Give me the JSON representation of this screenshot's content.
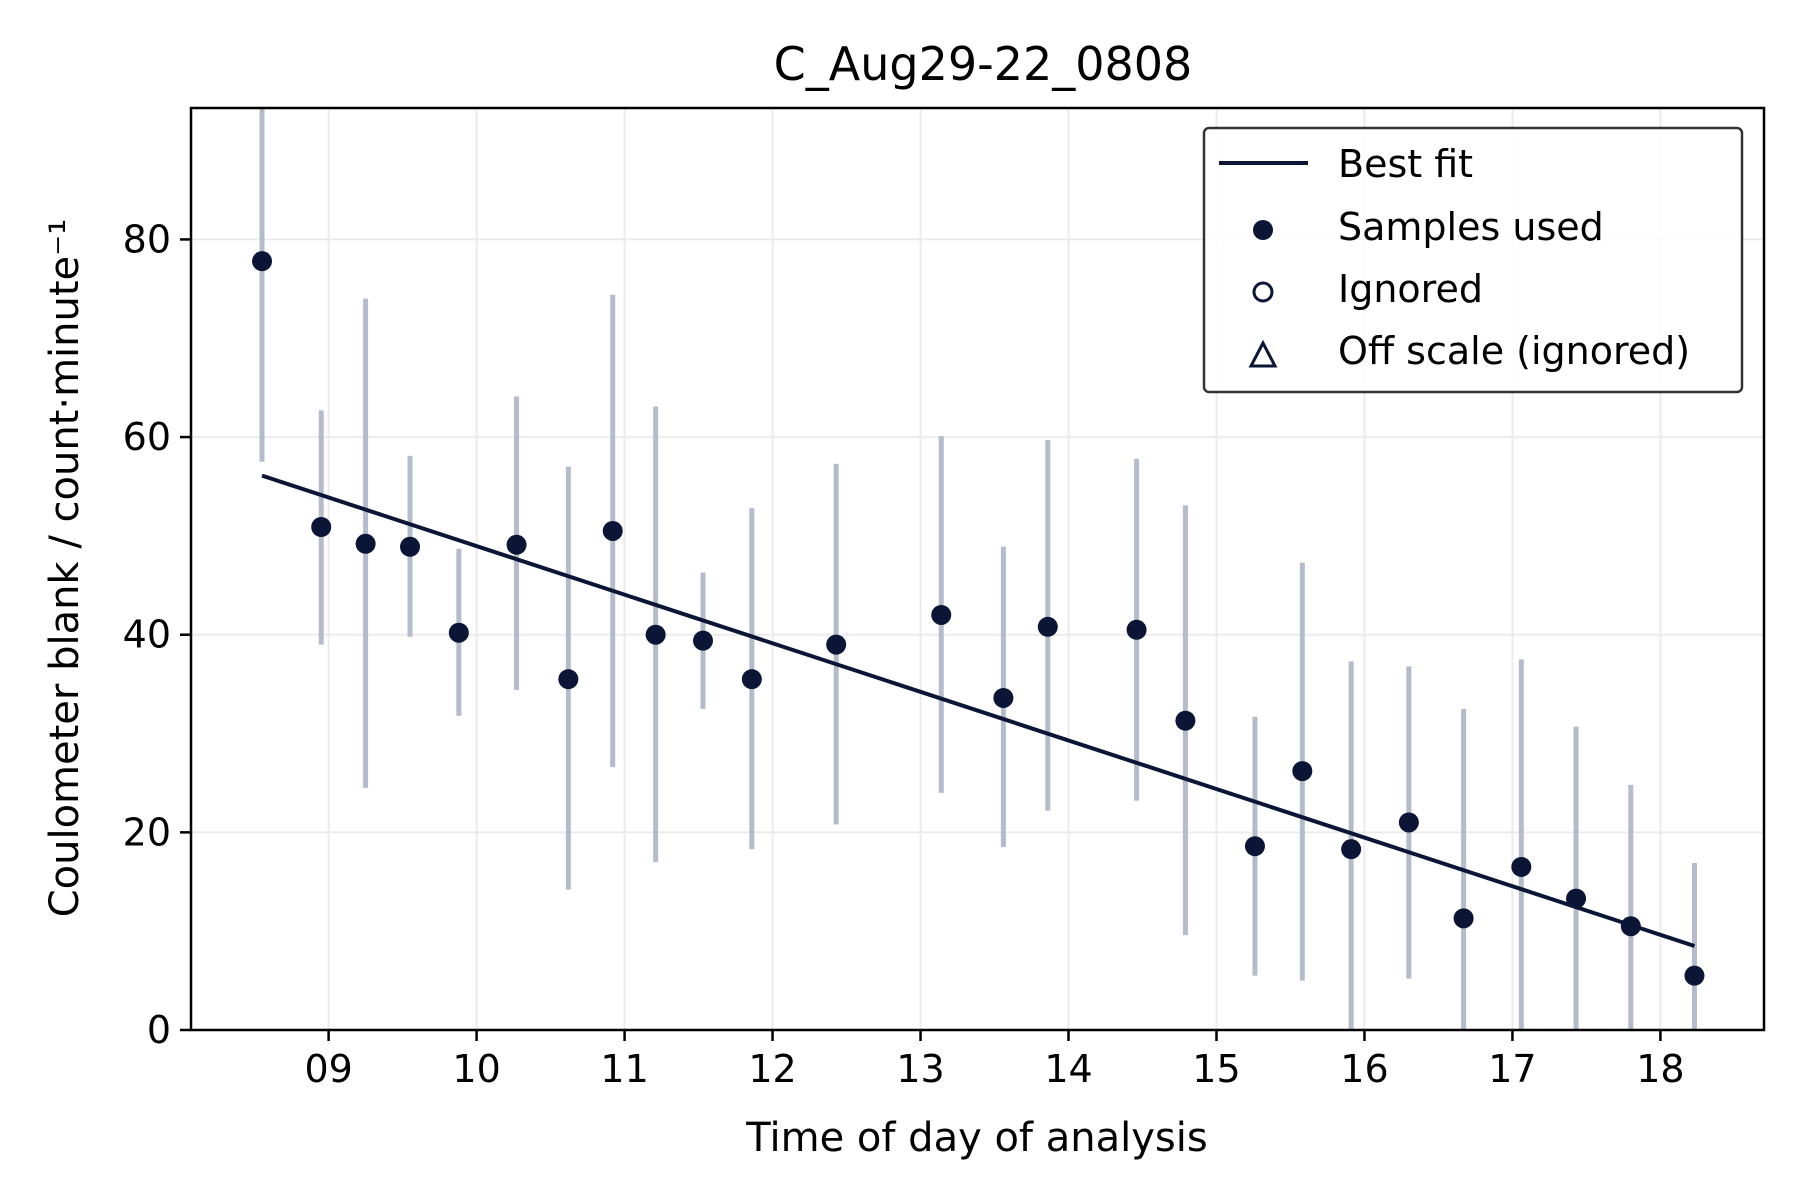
{
  "chart_data": {
    "type": "scatter",
    "title": "C_Aug29-22_0808",
    "xlabel": "Time of day of analysis",
    "ylabel": "Coulometer blank / count·minute⁻¹",
    "xlim": [
      8.07,
      18.7
    ],
    "ylim": [
      0,
      93.3
    ],
    "xticks": [
      9,
      10,
      11,
      12,
      13,
      14,
      15,
      16,
      17,
      18
    ],
    "xtick_labels": [
      "09",
      "10",
      "11",
      "12",
      "13",
      "14",
      "15",
      "16",
      "17",
      "18"
    ],
    "yticks": [
      0,
      20,
      40,
      60,
      80
    ],
    "ytick_labels": [
      "0",
      "20",
      "40",
      "60",
      "80"
    ],
    "grid": true,
    "legend_position": "top-right",
    "legend": [
      {
        "key": "best_fit",
        "label": "Best fit"
      },
      {
        "key": "used",
        "label": "Samples used"
      },
      {
        "key": "ignored",
        "label": "Ignored"
      },
      {
        "key": "offscale",
        "label": "Off scale (ignored)"
      }
    ],
    "colors": {
      "marker": "#0b1535",
      "errorbar": "#b4bbca",
      "fit": "#0b1535",
      "grid": "#ebebeb"
    },
    "best_fit": {
      "x": [
        8.55,
        18.23
      ],
      "y": [
        56.1,
        8.5
      ]
    },
    "samples_used": [
      {
        "x": 8.55,
        "y": 77.8,
        "lo": 57.5,
        "hi": 93.3
      },
      {
        "x": 8.95,
        "y": 50.9,
        "lo": 39.0,
        "hi": 62.7
      },
      {
        "x": 9.25,
        "y": 49.2,
        "lo": 24.5,
        "hi": 74.0
      },
      {
        "x": 9.55,
        "y": 48.9,
        "lo": 39.8,
        "hi": 58.1
      },
      {
        "x": 9.88,
        "y": 40.2,
        "lo": 31.8,
        "hi": 48.7
      },
      {
        "x": 10.27,
        "y": 49.1,
        "lo": 34.4,
        "hi": 64.1
      },
      {
        "x": 10.62,
        "y": 35.5,
        "lo": 14.2,
        "hi": 57.0
      },
      {
        "x": 10.92,
        "y": 50.5,
        "lo": 26.6,
        "hi": 74.4
      },
      {
        "x": 11.21,
        "y": 40.0,
        "lo": 17.0,
        "hi": 63.1
      },
      {
        "x": 11.53,
        "y": 39.4,
        "lo": 32.5,
        "hi": 46.3
      },
      {
        "x": 11.86,
        "y": 35.5,
        "lo": 18.3,
        "hi": 52.8
      },
      {
        "x": 12.43,
        "y": 39.0,
        "lo": 20.8,
        "hi": 57.3
      },
      {
        "x": 13.14,
        "y": 42.0,
        "lo": 24.0,
        "hi": 60.1
      },
      {
        "x": 13.56,
        "y": 33.6,
        "lo": 18.5,
        "hi": 48.9
      },
      {
        "x": 13.86,
        "y": 40.8,
        "lo": 22.2,
        "hi": 59.7
      },
      {
        "x": 14.46,
        "y": 40.5,
        "lo": 23.2,
        "hi": 57.8
      },
      {
        "x": 14.79,
        "y": 31.3,
        "lo": 9.6,
        "hi": 53.1
      },
      {
        "x": 15.26,
        "y": 18.6,
        "lo": 5.5,
        "hi": 31.7
      },
      {
        "x": 15.58,
        "y": 26.2,
        "lo": 5.0,
        "hi": 47.3
      },
      {
        "x": 15.91,
        "y": 18.3,
        "lo": 0.0,
        "hi": 37.3
      },
      {
        "x": 16.3,
        "y": 21.0,
        "lo": 5.2,
        "hi": 36.8
      },
      {
        "x": 16.67,
        "y": 11.3,
        "lo": 0.0,
        "hi": 32.5
      },
      {
        "x": 17.06,
        "y": 16.5,
        "lo": 0.0,
        "hi": 37.5
      },
      {
        "x": 17.43,
        "y": 13.3,
        "lo": 0.0,
        "hi": 30.7
      },
      {
        "x": 17.8,
        "y": 10.5,
        "lo": 0.0,
        "hi": 24.8
      },
      {
        "x": 18.23,
        "y": 5.5,
        "lo": 0.0,
        "hi": 16.9
      }
    ],
    "ignored": [],
    "off_scale": []
  }
}
